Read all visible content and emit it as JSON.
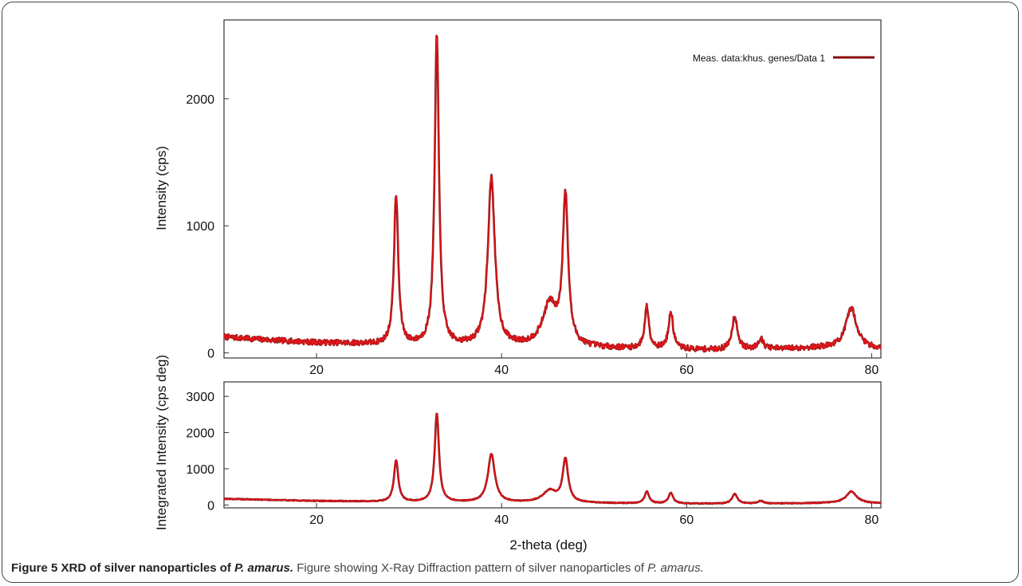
{
  "caption": {
    "label_prefix": "Figure 5 XRD of silver nanoparticles of ",
    "label_species": "P. amarus.",
    "desc_prefix": " Figure showing X-Ray Diffraction pattern of silver nanoparticles of ",
    "desc_species": "P. amarus."
  },
  "colors": {
    "trace": "#e0161b",
    "trace_outline": "#8a0c0c",
    "axes": "#333333"
  },
  "chart_data": [
    {
      "id": "top",
      "type": "line",
      "title": "",
      "xlabel": "",
      "ylabel": "Intensity (cps)",
      "xlim": [
        10,
        81
      ],
      "ylim": [
        -40,
        2620
      ],
      "xticks": [
        20,
        40,
        60,
        80
      ],
      "xtick_labels": [
        "20",
        "40",
        "60",
        "80"
      ],
      "yticks": [
        0,
        1000,
        2000
      ],
      "ytick_labels": [
        "0",
        "1000",
        "2000"
      ],
      "grid": false,
      "legend": {
        "label": "Meas. data:khus. genes/Data 1",
        "placement": "top-right"
      },
      "series": [
        {
          "name": "Meas. data:khus. genes/Data 1",
          "baseline_points": [
            [
              10,
              125
            ],
            [
              15,
              100
            ],
            [
              20,
              80
            ],
            [
              25,
              70
            ],
            [
              28,
              55
            ],
            [
              35,
              50
            ],
            [
              45,
              45
            ],
            [
              55,
              30
            ],
            [
              65,
              20
            ],
            [
              75,
              40
            ],
            [
              81,
              30
            ]
          ],
          "peaks": [
            {
              "two_theta": 28.6,
              "intensity": 1230
            },
            {
              "two_theta": 33.0,
              "intensity": 2480
            },
            {
              "two_theta": 38.9,
              "intensity": 1370
            },
            {
              "two_theta": 45.2,
              "intensity": 370
            },
            {
              "two_theta": 46.9,
              "intensity": 1210
            },
            {
              "two_theta": 55.7,
              "intensity": 360
            },
            {
              "two_theta": 58.3,
              "intensity": 310
            },
            {
              "two_theta": 65.2,
              "intensity": 290
            },
            {
              "two_theta": 68.0,
              "intensity": 110
            },
            {
              "two_theta": 77.8,
              "intensity": 350
            }
          ]
        }
      ]
    },
    {
      "id": "bottom",
      "type": "line",
      "title": "",
      "xlabel": "2-theta (deg)",
      "ylabel": "Integrated Intensity (cps deg)",
      "xlim": [
        10,
        81
      ],
      "ylim": [
        -80,
        3400
      ],
      "xticks": [
        20,
        40,
        60,
        80
      ],
      "xtick_labels": [
        "20",
        "40",
        "60",
        "80"
      ],
      "yticks": [
        0,
        1000,
        2000,
        3000
      ],
      "ytick_labels": [
        "0",
        "1000",
        "2000",
        "3000"
      ],
      "grid": false,
      "series": [
        {
          "baseline_points": [
            [
              10,
              170
            ],
            [
              15,
              140
            ],
            [
              20,
              110
            ],
            [
              25,
              95
            ],
            [
              28,
              80
            ],
            [
              35,
              70
            ],
            [
              45,
              60
            ],
            [
              55,
              40
            ],
            [
              65,
              30
            ],
            [
              75,
              50
            ],
            [
              81,
              40
            ]
          ],
          "peaks": [
            {
              "two_theta": 28.6,
              "intensity": 1230
            },
            {
              "two_theta": 33.0,
              "intensity": 2520
            },
            {
              "two_theta": 38.9,
              "intensity": 1400
            },
            {
              "two_theta": 45.2,
              "intensity": 380
            },
            {
              "two_theta": 46.9,
              "intensity": 1240
            },
            {
              "two_theta": 55.7,
              "intensity": 370
            },
            {
              "two_theta": 58.3,
              "intensity": 330
            },
            {
              "two_theta": 65.2,
              "intensity": 300
            },
            {
              "two_theta": 68.0,
              "intensity": 110
            },
            {
              "two_theta": 77.8,
              "intensity": 370
            }
          ]
        }
      ]
    }
  ]
}
